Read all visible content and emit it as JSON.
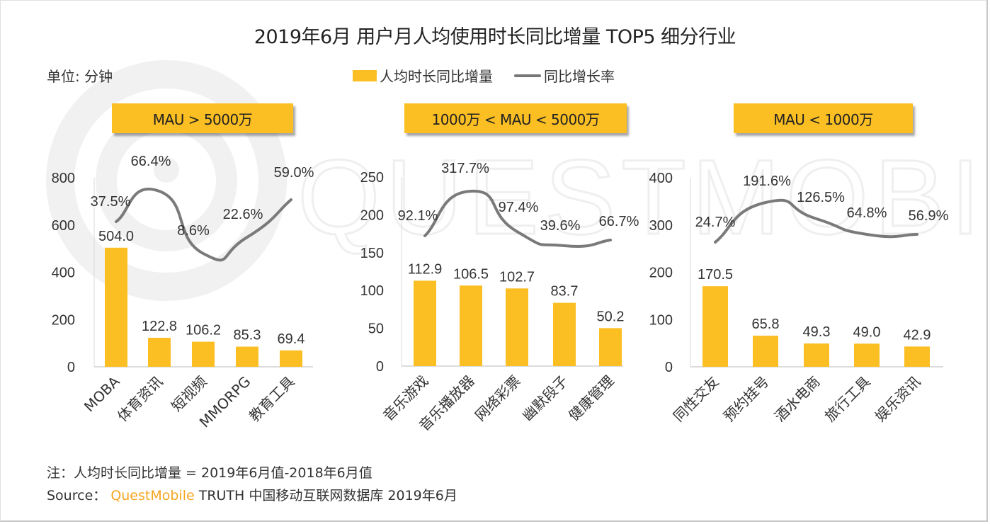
{
  "title": "2019年6月 用户月人均使用时长同比增量 TOP5 细分行业",
  "unit_label": "单位: 分钟",
  "legend": {
    "bar_label": "人均时长同比增量",
    "line_label": "同比增长率"
  },
  "colors": {
    "bar": "#fbbf24",
    "line": "#7a7a7a",
    "badge": "#fbbf24",
    "brand": "#f5a623"
  },
  "watermark": "QUESTMOBILE",
  "note": "注：人均时长同比增量 = 2019年6月值-2018年6月值",
  "source": {
    "prefix": "Source：",
    "brand": "QuestMobile",
    "suffix": " TRUTH 中国移动互联网数据库 2019年6月"
  },
  "chart_data": [
    {
      "type": "bar",
      "group_label": "MAU > 5000万",
      "categories": [
        "MOBA",
        "体育资讯",
        "短视频",
        "MMORPG",
        "教育工具"
      ],
      "series": [
        {
          "name": "人均时长同比增量",
          "type": "bar",
          "values": [
            504.0,
            122.8,
            106.2,
            85.3,
            69.4
          ],
          "labels": [
            "504.0",
            "122.8",
            "106.2",
            "85.3",
            "69.4"
          ]
        },
        {
          "name": "同比增长率",
          "type": "line",
          "values": [
            37.5,
            66.4,
            8.6,
            22.6,
            59.0
          ],
          "labels": [
            "37.5%",
            "66.4%",
            "8.6%",
            "22.6%",
            "59.0%"
          ]
        }
      ],
      "yticks": [
        "0",
        "200",
        "400",
        "600",
        "800"
      ],
      "ylim": [
        0,
        800
      ]
    },
    {
      "type": "bar",
      "group_label": "1000万 < MAU < 5000万",
      "categories": [
        "音乐游戏",
        "音乐播放器",
        "网络彩票",
        "幽默段子",
        "健康管理"
      ],
      "series": [
        {
          "name": "人均时长同比增量",
          "type": "bar",
          "values": [
            112.9,
            106.5,
            102.7,
            83.7,
            50.2
          ],
          "labels": [
            "112.9",
            "106.5",
            "102.7",
            "83.7",
            "50.2"
          ]
        },
        {
          "name": "同比增长率",
          "type": "line",
          "values": [
            92.1,
            317.7,
            97.4,
            39.6,
            66.7
          ],
          "labels": [
            "92.1%",
            "317.7%",
            "97.4%",
            "39.6%",
            "66.7%"
          ]
        }
      ],
      "yticks": [
        "0",
        "50",
        "100",
        "150",
        "200",
        "250"
      ],
      "ylim": [
        0,
        250
      ]
    },
    {
      "type": "bar",
      "group_label": "MAU < 1000万",
      "categories": [
        "同性交友",
        "预约挂号",
        "酒水电商",
        "旅行工具",
        "娱乐资讯"
      ],
      "series": [
        {
          "name": "人均时长同比增量",
          "type": "bar",
          "values": [
            170.5,
            65.8,
            49.3,
            49.0,
            42.9
          ],
          "labels": [
            "170.5",
            "65.8",
            "49.3",
            "49.0",
            "42.9"
          ]
        },
        {
          "name": "同比增长率",
          "type": "line",
          "values": [
            24.7,
            191.6,
            126.5,
            64.8,
            56.9
          ],
          "labels": [
            "24.7%",
            "191.6%",
            "126.5%",
            "64.8%",
            "56.9%"
          ]
        }
      ],
      "yticks": [
        "0",
        "100",
        "200",
        "300",
        "400"
      ],
      "ylim": [
        0,
        400
      ]
    }
  ]
}
